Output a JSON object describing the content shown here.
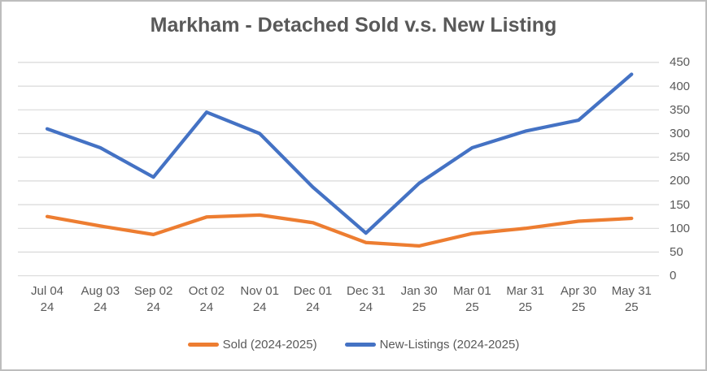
{
  "chart_data": {
    "type": "line",
    "title": "Markham - Detached Sold v.s. New Listing",
    "categories": [
      "Jul 04 24",
      "Aug 03 24",
      "Sep 02 24",
      "Oct 02 24",
      "Nov 01 24",
      "Dec 01 24",
      "Dec 31 24",
      "Jan 30 25",
      "Mar 01 25",
      "Mar 31 25",
      "Apr 30 25",
      "May 31 25"
    ],
    "series": [
      {
        "name": "Sold (2024-2025)",
        "color": "#ED7D31",
        "values": [
          125,
          105,
          87,
          124,
          128,
          112,
          70,
          63,
          89,
          100,
          115,
          121
        ]
      },
      {
        "name": "New-Listings (2024-2025)",
        "color": "#4472C4",
        "values": [
          310,
          270,
          208,
          345,
          300,
          187,
          90,
          195,
          270,
          305,
          328,
          425
        ]
      }
    ],
    "ylim": [
      0,
      450
    ],
    "ytick_step": 50,
    "yticks": [
      0,
      50,
      100,
      150,
      200,
      250,
      300,
      350,
      400,
      450
    ],
    "y_axis_side": "right",
    "grid": true,
    "gridline_color": "#D9D9D9",
    "text_color": "#595959",
    "legend_position": "bottom"
  }
}
